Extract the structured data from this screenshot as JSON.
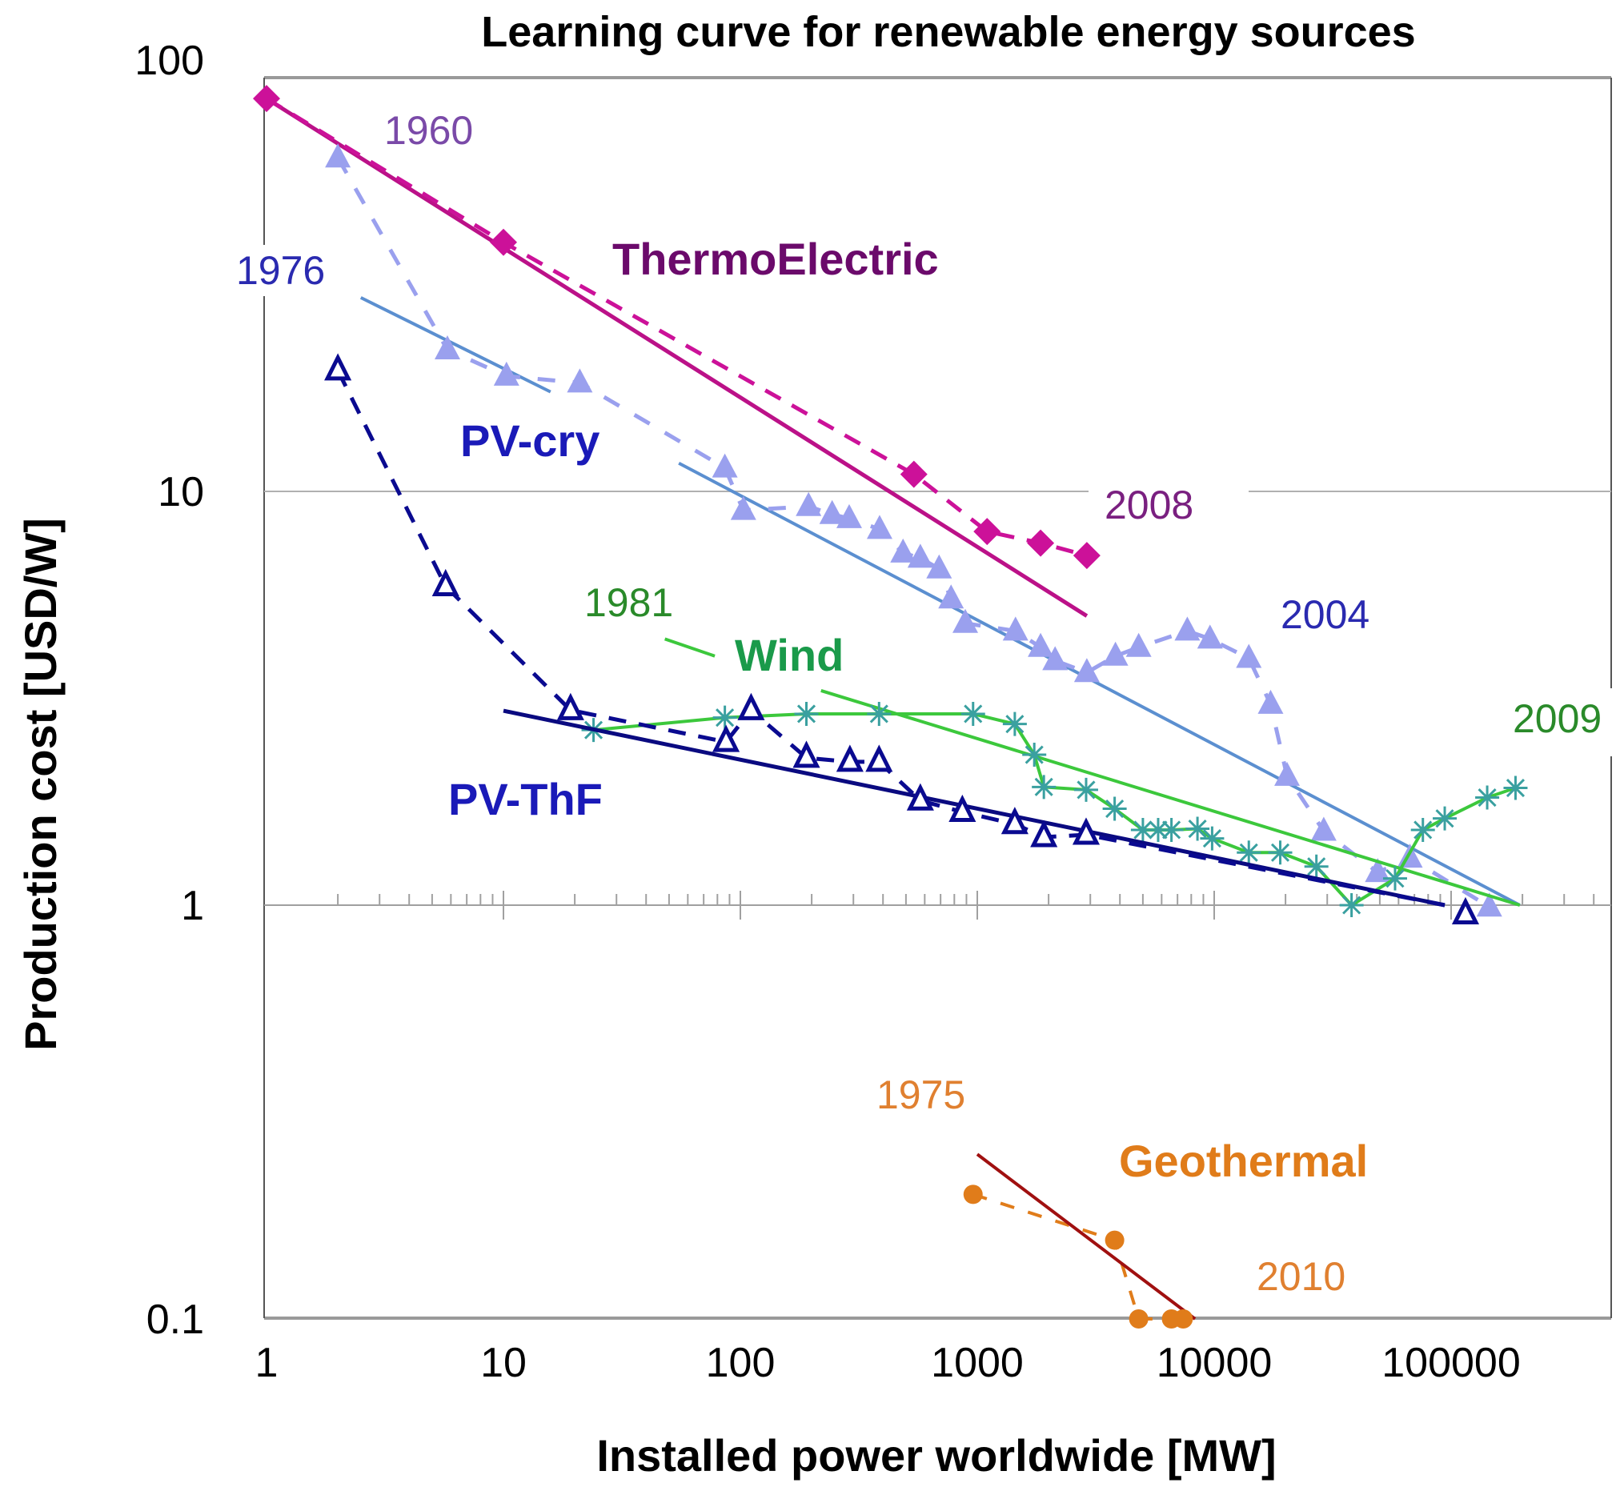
{
  "chart_data": {
    "type": "scatter",
    "title": "Learning curve for renewable energy sources",
    "xlabel": "Installed power worldwide [MW]",
    "ylabel": "Production cost [USD/W]",
    "xscale": "log",
    "yscale": "log",
    "xlim": [
      1,
      500000
    ],
    "ylim": [
      0.1,
      100
    ],
    "x_ticks": [
      1,
      10,
      100,
      1000,
      10000,
      100000
    ],
    "x_tick_labels": [
      "1",
      "10",
      "100",
      "1000",
      "10000",
      "100000"
    ],
    "y_ticks": [
      0.1,
      1,
      10,
      100
    ],
    "y_tick_labels": [
      "0.1",
      "1",
      "10",
      "100"
    ],
    "grid": "horizontal at 1 and 10",
    "legend": "none (inline labels)",
    "series": [
      {
        "name": "ThermoElectric",
        "color": "#cc1199",
        "label_color": "#6b0a6b",
        "marker": "diamond",
        "line_style": "dashed",
        "x": [
          1,
          10,
          540,
          1100,
          1850,
          2900
        ],
        "y": [
          89,
          40,
          11,
          8.0,
          7.5,
          7.0
        ],
        "fit": {
          "x": [
            1,
            2900
          ],
          "y": [
            89,
            5.0
          ],
          "color": "#bb1188"
        },
        "start_year": "1960",
        "end_year": "2008",
        "start_year_color": "#7a4aa8",
        "end_year_color": "#7a2080"
      },
      {
        "name": "PV-cry",
        "color": "#9aa0ee",
        "label_color": "#1a1ab8",
        "marker": "filled-triangle",
        "line_style": "dashed",
        "x": [
          2,
          5.8,
          10.3,
          21,
          86,
          103,
          194,
          244,
          288,
          387,
          486,
          575,
          690,
          775,
          890,
          1450,
          1850,
          2130,
          2900,
          3830,
          4800,
          7700,
          9600,
          14000,
          17300,
          20300,
          29000,
          49000,
          67000,
          145000
        ],
        "y": [
          64,
          22,
          19,
          18.3,
          11.4,
          9.0,
          9.2,
          8.8,
          8.6,
          8.1,
          7.1,
          6.9,
          6.5,
          5.5,
          4.8,
          4.6,
          4.2,
          3.9,
          3.65,
          4.0,
          4.2,
          4.6,
          4.4,
          3.95,
          3.06,
          2.05,
          1.51,
          1.2,
          1.3,
          0.99
        ],
        "fit_segments": [
          {
            "x": [
              2.5,
              15.8
            ],
            "y": [
              29.4,
              17.4
            ]
          },
          {
            "x": [
              55,
              195000
            ],
            "y": [
              11.7,
              1.0
            ]
          }
        ],
        "fit_color": "#5b8fd0",
        "start_year": "1976",
        "end_year": "2004",
        "year_color": "#2a2ab0"
      },
      {
        "name": "Wind",
        "color": "#3aa0a0",
        "line_color": "#3cc83c",
        "label_color": "#1a9a4a",
        "marker": "asterisk",
        "line_style": "solid",
        "x": [
          24,
          86,
          190,
          385,
          960,
          1440,
          1740,
          1910,
          2880,
          3800,
          5000,
          5800,
          6600,
          8500,
          9800,
          14000,
          19000,
          27000,
          38000,
          58000,
          76000,
          94000,
          142000,
          187000
        ],
        "y": [
          2.65,
          2.84,
          2.9,
          2.9,
          2.9,
          2.74,
          2.31,
          1.93,
          1.9,
          1.71,
          1.52,
          1.52,
          1.52,
          1.53,
          1.45,
          1.34,
          1.34,
          1.24,
          1.0,
          1.16,
          1.52,
          1.62,
          1.82,
          1.92
        ],
        "fit_segments": [
          {
            "x": [
              48,
              78
            ],
            "y": [
              4.4,
              4.0
            ]
          },
          {
            "x": [
              219,
              195000
            ],
            "y": [
              3.3,
              1.0
            ]
          }
        ],
        "start_year": "1981",
        "end_year": "2009",
        "year_color": "#2a8a2a"
      },
      {
        "name": "PV-ThF",
        "color": "#0a0a90",
        "label_color": "#1a1ab8",
        "marker": "open-triangle",
        "line_style": "dashed",
        "x": [
          2,
          5.7,
          19.2,
          87,
          111,
          190,
          290,
          385,
          575,
          865,
          1440,
          1910,
          2880,
          94000
        ],
        "y": [
          19.6,
          5.9,
          2.96,
          2.48,
          2.96,
          2.27,
          2.22,
          2.22,
          1.79,
          1.68,
          1.57,
          1.46,
          1.48,
          1.0
        ],
        "extra_point": {
          "x": 115000,
          "y": 0.95
        },
        "fit": {
          "x": [
            10,
            94000
          ],
          "y": [
            2.95,
            1.0
          ],
          "color": "#0a0a80"
        }
      },
      {
        "name": "Geothermal",
        "color": "#e07c1a",
        "label_color": "#e07c1a",
        "marker": "circle",
        "line_style": "dashed",
        "x": [
          960,
          3800,
          4800,
          6600,
          7400
        ],
        "y": [
          0.2,
          0.155,
          0.1,
          0.1,
          0.1
        ],
        "fit": {
          "x": [
            1000,
            8300
          ],
          "y": [
            0.25,
            0.1
          ],
          "color": "#a01010"
        },
        "start_year": "1975",
        "end_year": "2010",
        "year_color": "#e08030"
      }
    ]
  }
}
